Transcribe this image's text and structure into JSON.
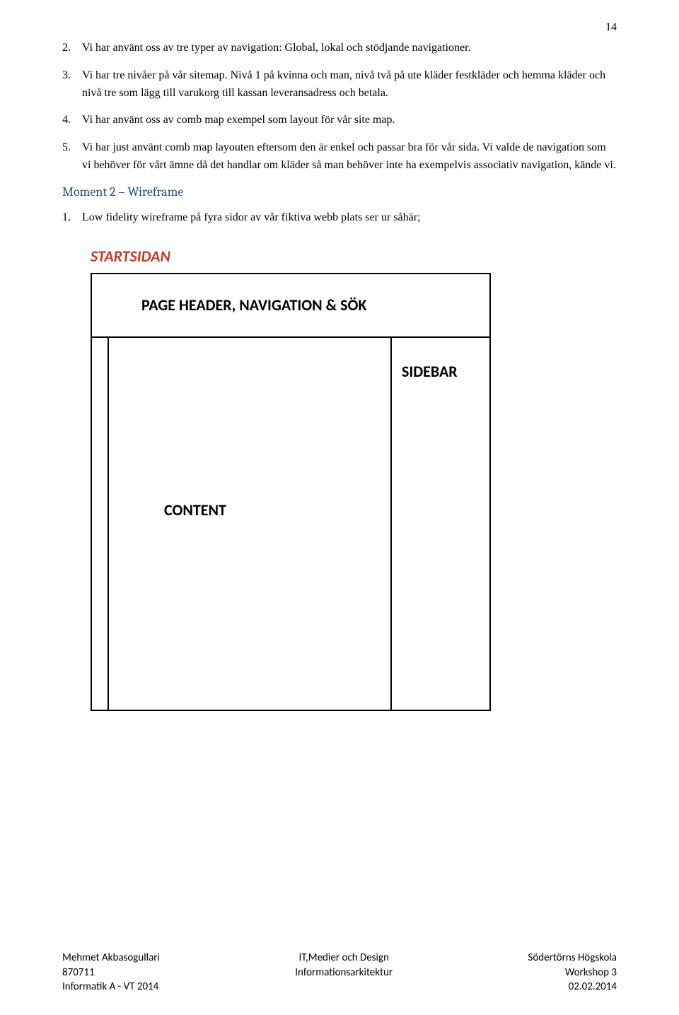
{
  "page_number": "14",
  "list": {
    "items": [
      {
        "num": "2.",
        "text": "Vi har använt oss av tre typer av navigation: Global, lokal och stödjande navigationer."
      },
      {
        "num": "3.",
        "text": "Vi har tre nivåer på vår sitemap. Nivå 1 på kvinna och man, nivå två på ute kläder festkläder och hemma kläder och nivå tre som lägg till varukorg till kassan leveransadress och betala."
      },
      {
        "num": "4.",
        "text": "Vi har använt oss av comb map exempel som layout för vår site map."
      },
      {
        "num": "5.",
        "text": "Vi har just använt comb map layouten eftersom den är enkel och passar bra för vår sida. Vi valde de navigation som vi behöver för vårt ämne då det handlar om kläder så man behöver inte ha exempelvis associativ navigation, kände vi."
      }
    ]
  },
  "section_heading": "Moment 2 – Wireframe",
  "sublist": {
    "num": "1.",
    "text": "Low fidelity wireframe på fyra sidor av vår fiktiva webb plats ser ur såhär;"
  },
  "wireframe": {
    "title": "STARTSIDAN",
    "header_label": "PAGE HEADER, NAVIGATION & SÖK",
    "content_label": "CONTENT",
    "sidebar_label": "SIDEBAR",
    "border_color": "#000000",
    "title_color": "#c0392b",
    "background_color": "#ffffff"
  },
  "footer": {
    "left": {
      "l1": "Mehmet Akbasogullari",
      "l2": "870711",
      "l3": "Informatik A - VT 2014"
    },
    "center": {
      "l1": "IT,Medier och Design",
      "l2": "",
      "l3": "Informationsarkitektur"
    },
    "right": {
      "l1": "Södertörns Högskola",
      "l2": "Workshop 3",
      "l3": "02.02.2014"
    }
  }
}
